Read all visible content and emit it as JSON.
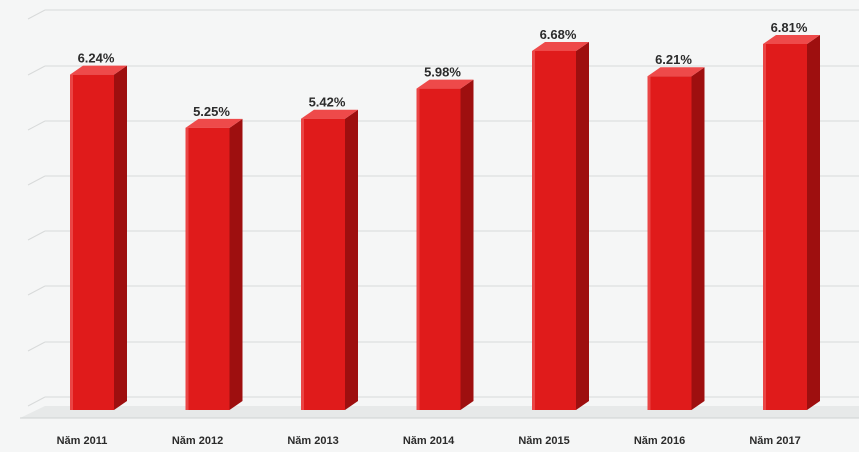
{
  "chart_data": {
    "type": "bar",
    "categories": [
      "Năm 2011",
      "Năm 2012",
      "Năm 2013",
      "Năm 2014",
      "Năm 2015",
      "Năm 2016",
      "Năm 2017"
    ],
    "values": [
      6.24,
      5.25,
      5.42,
      5.98,
      6.68,
      6.21,
      6.81
    ],
    "data_labels": [
      "6.24%",
      "5.25%",
      "5.42%",
      "5.98%",
      "6.68%",
      "6.21%",
      "6.81%"
    ],
    "title": "",
    "xlabel": "",
    "ylabel": "",
    "ylim": [
      0,
      7
    ],
    "grid": true,
    "style": "3d-column",
    "colors": {
      "bar_front": "#e01b1b",
      "bar_side": "#9e0f0f",
      "bar_top": "#ee4a4a",
      "background": "#f5f6f6",
      "gridline": "#d8dada",
      "floor": "#e7e9e9"
    }
  }
}
